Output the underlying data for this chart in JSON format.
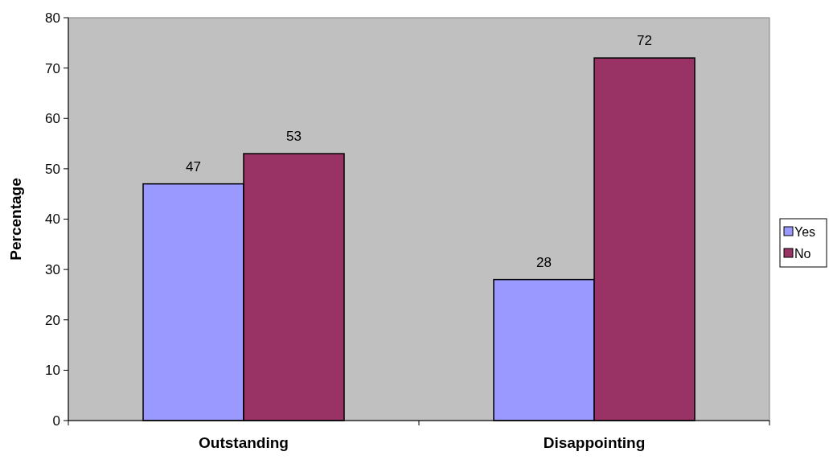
{
  "chart_data": {
    "type": "bar",
    "ylabel": "Percentage",
    "categories": [
      "Outstanding",
      "Disappointing"
    ],
    "series": [
      {
        "name": "Yes",
        "color": "#9999ff",
        "values": [
          47,
          28
        ]
      },
      {
        "name": "No",
        "color": "#993366",
        "values": [
          53,
          72
        ]
      }
    ],
    "ylim": [
      0,
      80
    ],
    "yticks": [
      0,
      10,
      20,
      30,
      40,
      50,
      60,
      70,
      80
    ],
    "data_labels": true,
    "legend": "right"
  }
}
